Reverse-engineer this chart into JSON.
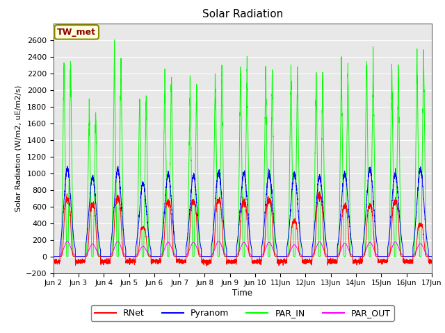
{
  "title": "Solar Radiation",
  "ylabel": "Solar Radiation (W/m2, uE/m2/s)",
  "xlabel": "Time",
  "ylim": [
    -200,
    2800
  ],
  "yticks": [
    -200,
    0,
    200,
    400,
    600,
    800,
    1000,
    1200,
    1400,
    1600,
    1800,
    2000,
    2200,
    2400,
    2600
  ],
  "bg_color": "#e8e8e8",
  "annotation_text": "TW_met",
  "annotation_fg": "#8B0000",
  "annotation_bg": "#FFFFE0",
  "annotation_border": "#8B8B00",
  "num_days": 15,
  "points_per_day": 288,
  "start_day": 2,
  "par_in_peaks": [
    2380,
    1800,
    2400,
    1960,
    2200,
    2050,
    2250,
    2300,
    2250,
    2240,
    2200,
    2270,
    2380,
    2290,
    2490
  ],
  "pyranom_peaks": [
    1050,
    950,
    1050,
    880,
    980,
    970,
    1010,
    1000,
    1000,
    1000,
    960,
    1000,
    1050,
    1000,
    1050
  ],
  "rnet_peaks": [
    680,
    620,
    690,
    340,
    650,
    650,
    670,
    650,
    670,
    420,
    720,
    600,
    600,
    660,
    380
  ],
  "par_out_peaks": [
    180,
    150,
    180,
    120,
    170,
    170,
    185,
    170,
    170,
    140,
    175,
    160,
    170,
    175,
    155
  ]
}
